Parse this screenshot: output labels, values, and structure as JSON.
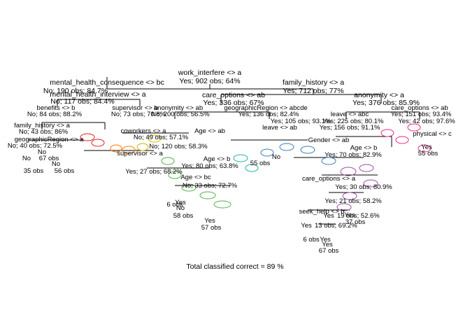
{
  "title": "Total classified correct = 89 %",
  "root": {
    "split": "work_interfere <> a",
    "stats": "Yes; 902 obs; 64%"
  },
  "level1": {
    "left": {
      "split": "mental_health_consequence <> bc",
      "stats": "No; 190 obs; 84.7%"
    },
    "right": {
      "split": "family_history <> a",
      "stats": "Yes; 712 obs; 77%"
    }
  },
  "level2": [
    {
      "split": "mental_health_interview <> a",
      "stats": "No; 117 obs; 84.4%"
    },
    {
      "split": "care_options <> ab",
      "stats": "Yes; 336 obs; 67%"
    },
    {
      "split": "anonymity <> a",
      "stats": "Yes; 376 obs; 85.9%"
    }
  ],
  "level3": [
    {
      "split": "benefits <> b",
      "stats": "No; 84 obs; 88.2%"
    },
    {
      "split": "supervisor <> b",
      "stats": "No; 73 obs; 70.8%"
    },
    {
      "split": "anonymity <> ab",
      "stats": "No; 200 obs; 56.5%"
    },
    {
      "split": "geographicRegion <> abcde",
      "stats": "Yes; 136 obs; 82.4%"
    },
    {
      "split": "leave <> abc",
      "stats": "Yes; 225 obs; 80.1%"
    },
    {
      "split": "care_options <> ab",
      "stats": "Yes; 151 obs; 93.4%"
    }
  ],
  "level4": [
    {
      "split": "family_history <> a",
      "stats": "No; 43 obs; 86%"
    },
    {
      "split": "geographicRegion <> a",
      "stats": "No; 40 obs; 72.5%"
    },
    {
      "split": "coworkers <> a",
      "stats": "No; 49 obs; 57.1%"
    },
    {
      "split": "Age <> ab",
      "stats": "No; 120 obs; 58.3%"
    },
    {
      "split": "Age <> b",
      "stats": "Yes; 80 obs; 63.8%"
    },
    {
      "split": "leave <> ab",
      "stats": "Yes; 105 obs; 93.1%"
    },
    {
      "split": "Gender <> ab",
      "stats": "Yes; 156 obs; 91.1%"
    },
    {
      "split": "Age <> b",
      "stats": "Yes; 70 obs; 82.9%"
    },
    {
      "split": "physical <> c",
      "stats": "Yes; 42 obs; 97.6%"
    }
  ],
  "leaves_left": [
    {
      "label": "No",
      "stats": "35 obs"
    },
    {
      "label": "No",
      "stats": "56 obs"
    },
    {
      "label": "No",
      "stats": "67 obs"
    },
    {
      "label": "Yes",
      "stats": "6 obs"
    },
    {
      "label": "No",
      "stats": "58 obs"
    },
    {
      "label": "Yes",
      "stats": "57 obs"
    },
    {
      "label": "No",
      "stats": "55 obs"
    }
  ],
  "leaves_right": [
    {
      "label": "Yes",
      "stats": "19 obs; 52.6%"
    },
    {
      "label": "Yes",
      "stats": "13 obs; 69.2%"
    },
    {
      "label": "Yes",
      "stats": "6 obs"
    },
    {
      "label": "Yes",
      "stats": "67 obs"
    },
    {
      "label": "Yes",
      "stats": "55 obs"
    },
    {
      "label": "Yes",
      "stats": "37 obs"
    }
  ],
  "mid_nodes": [
    {
      "split": "care_options <> a",
      "stats": "Yes; 30 obs; 80.9%"
    },
    {
      "split": "seek_help <> b",
      "stats": "Yes; 21 obs; 58.2%"
    },
    {
      "split": "Age <> bc",
      "stats": "No; 33 obs; 72.7%"
    },
    {
      "split": "supervisor <> a",
      "stats": "Yes; 27 obs; 68.2%"
    }
  ],
  "colors": {
    "red": "#e41a1c",
    "orange": "#ff7f00",
    "yellow": "#d6b600",
    "green": "#4daf4a",
    "teal": "#1bb3a5",
    "blue": "#377eb8",
    "purple": "#984ea3",
    "pink": "#e7298a"
  }
}
